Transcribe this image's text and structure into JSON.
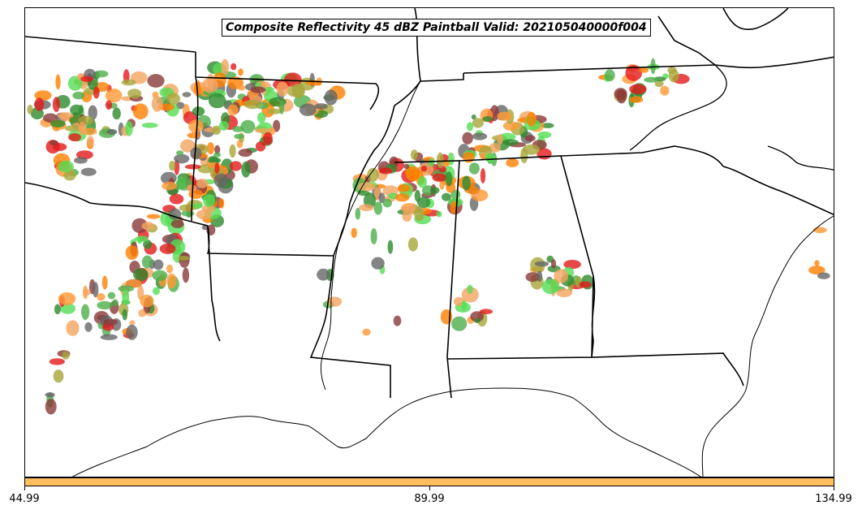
{
  "title": "Composite Reflectivity 45 dBZ Paintball Valid: 202105040000f004",
  "colorbar": {
    "color": "#ffbf5f",
    "ticks": [
      "44.99",
      "89.99",
      "134.99"
    ]
  },
  "paintball_colors": [
    "#e41a1c",
    "#ff7f00",
    "#4daf4a",
    "#a6a63a",
    "#8b3a3a",
    "#2e8b2e",
    "#ff9933",
    "#666666",
    "#55dd55",
    "#f4a460"
  ]
}
